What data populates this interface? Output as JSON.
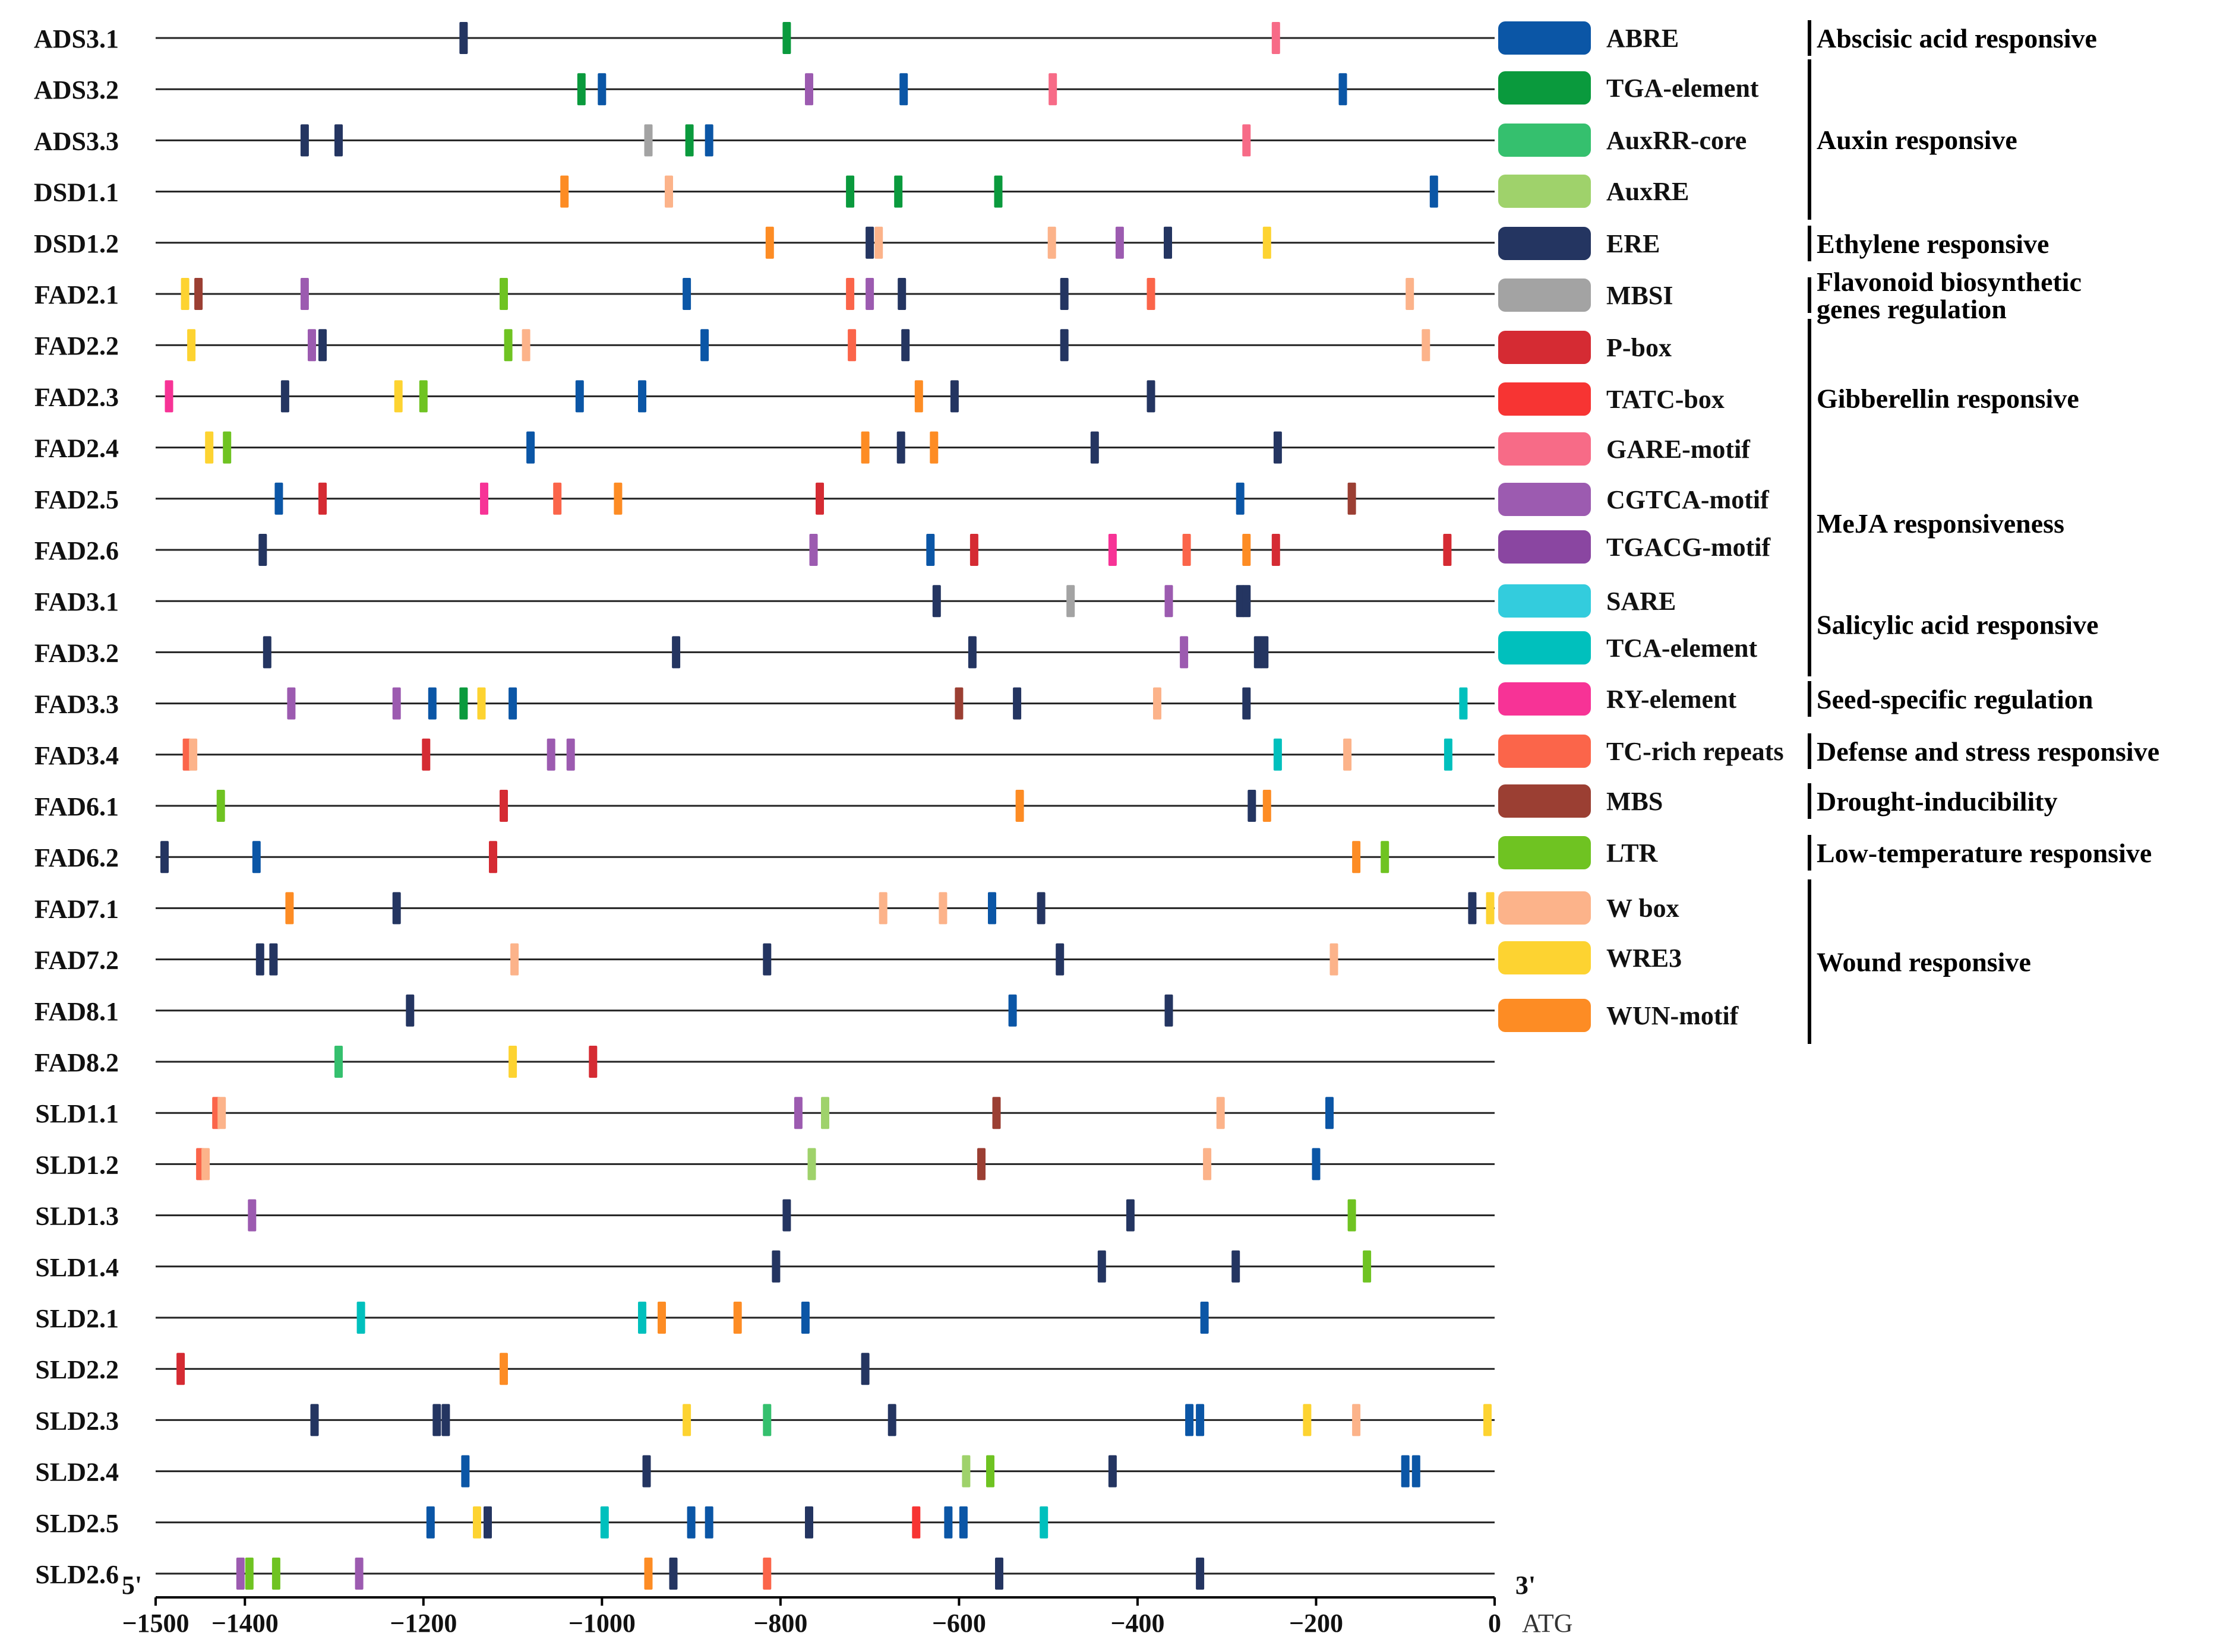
{
  "chart_data": {
    "type": "promoter-element-map",
    "x_axis": {
      "range": [
        -1500,
        0
      ],
      "ticks": [
        -1500,
        -1400,
        -1200,
        -1000,
        -800,
        -600,
        -400,
        -200,
        0
      ],
      "tick_labels": [
        "−1500",
        "−1400",
        "−1200",
        "−1000",
        "−800",
        "−600",
        "−400",
        "−200",
        "0"
      ],
      "left_end_label": "5'",
      "right_end_label": "3'",
      "atg_label": "ATG"
    },
    "elements": [
      {
        "key": "ABRE",
        "label": "ABRE",
        "color": "#0b56a6"
      },
      {
        "key": "TGA",
        "label": "TGA-element",
        "color": "#0a9a3d"
      },
      {
        "key": "AuxRR",
        "label": "AuxRR-core",
        "color": "#35c06e"
      },
      {
        "key": "AuxRE",
        "label": "AuxRE",
        "color": "#9fd26b"
      },
      {
        "key": "ERE",
        "label": "ERE",
        "color": "#243561"
      },
      {
        "key": "MBSI",
        "label": "MBSI",
        "color": "#a3a3a3"
      },
      {
        "key": "Pbox",
        "label": "P-box",
        "color": "#d52b33"
      },
      {
        "key": "TATC",
        "label": "TATC-box",
        "color": "#f73433"
      },
      {
        "key": "GARE",
        "label": "GARE-motif",
        "color": "#f76b87"
      },
      {
        "key": "CGTCA",
        "label": "CGTCA-motif",
        "color": "#9c5bb0"
      },
      {
        "key": "TGACG",
        "label": "TGACG-motif",
        "color": "#8a46a1"
      },
      {
        "key": "SARE",
        "label": "SARE",
        "color": "#33ccdd"
      },
      {
        "key": "TCA",
        "label": "TCA-element",
        "color": "#00c0bd"
      },
      {
        "key": "RY",
        "label": "RY-element",
        "color": "#f73396"
      },
      {
        "key": "TCrich",
        "label": "TC-rich repeats",
        "color": "#fb654a"
      },
      {
        "key": "MBS",
        "label": "MBS",
        "color": "#9b3f33"
      },
      {
        "key": "LTR",
        "label": "LTR",
        "color": "#6fc322"
      },
      {
        "key": "Wbox",
        "label": "W box",
        "color": "#fcb38a"
      },
      {
        "key": "WRE3",
        "label": "WRE3",
        "color": "#fdd331"
      },
      {
        "key": "WUN",
        "label": "WUN-motif",
        "color": "#fd8c24"
      }
    ],
    "groups": [
      {
        "lines": [
          "Abscisic acid responsive"
        ],
        "from": 0,
        "to": 0
      },
      {
        "lines": [
          "Auxin responsive"
        ],
        "from": 1,
        "to": 3
      },
      {
        "lines": [
          "Ethylene responsive"
        ],
        "from": 4,
        "to": 4
      },
      {
        "lines": [
          "Flavonoid biosynthetic",
          "genes regulation"
        ],
        "from": 5,
        "to": 5
      },
      {
        "lines": [
          "Gibberellin responsive"
        ],
        "from": 6,
        "to": 8
      },
      {
        "lines": [
          "MeJA responsiveness"
        ],
        "from": 9,
        "to": 10
      },
      {
        "lines": [
          "Salicylic acid responsive"
        ],
        "from": 11,
        "to": 12
      },
      {
        "lines": [
          "Seed-specific regulation"
        ],
        "from": 13,
        "to": 13
      },
      {
        "lines": [
          "Defense and stress responsive"
        ],
        "from": 14,
        "to": 14
      },
      {
        "lines": [
          "Drought-inducibility"
        ],
        "from": 15,
        "to": 15
      },
      {
        "lines": [
          "Low-temperature responsive"
        ],
        "from": 16,
        "to": 16
      },
      {
        "lines": [
          "Wound responsive"
        ],
        "from": 17,
        "to": 19
      }
    ],
    "genes": [
      {
        "name": "ADS3.1",
        "sites": [
          [
            -1155,
            "ERE"
          ],
          [
            -793,
            "TGA"
          ],
          [
            -245,
            "GARE"
          ]
        ]
      },
      {
        "name": "ADS3.2",
        "sites": [
          [
            -1023,
            "TGA"
          ],
          [
            -1000,
            "ABRE"
          ],
          [
            -768,
            "CGTCA"
          ],
          [
            -662,
            "ABRE"
          ],
          [
            -495,
            "GARE"
          ],
          [
            -170,
            "ABRE"
          ]
        ]
      },
      {
        "name": "ADS3.3",
        "sites": [
          [
            -1333,
            "ERE"
          ],
          [
            -1295,
            "ERE"
          ],
          [
            -948,
            "MBSI"
          ],
          [
            -902,
            "TGA"
          ],
          [
            -880,
            "ABRE"
          ],
          [
            -278,
            "GARE"
          ]
        ]
      },
      {
        "name": "DSD1.1",
        "sites": [
          [
            -1042,
            "WUN"
          ],
          [
            -925,
            "Wbox"
          ],
          [
            -722,
            "TGA"
          ],
          [
            -668,
            "TGA"
          ],
          [
            -556,
            "TGA"
          ],
          [
            -68,
            "ABRE"
          ]
        ]
      },
      {
        "name": "DSD1.2",
        "sites": [
          [
            -812,
            "WUN"
          ],
          [
            -700,
            "ERE"
          ],
          [
            -690,
            "Wbox"
          ],
          [
            -496,
            "Wbox"
          ],
          [
            -420,
            "CGTCA"
          ],
          [
            -366,
            "ERE"
          ],
          [
            -255,
            "WRE3"
          ]
        ]
      },
      {
        "name": "FAD2.1",
        "sites": [
          [
            -1467,
            "WRE3"
          ],
          [
            -1452,
            "MBS"
          ],
          [
            -1333,
            "CGTCA"
          ],
          [
            -1110,
            "LTR"
          ],
          [
            -905,
            "ABRE"
          ],
          [
            -722,
            "TCrich"
          ],
          [
            -700,
            "CGTCA"
          ],
          [
            -664,
            "ERE"
          ],
          [
            -482,
            "ERE"
          ],
          [
            -385,
            "TCrich"
          ],
          [
            -95,
            "Wbox"
          ]
        ]
      },
      {
        "name": "FAD2.2",
        "sites": [
          [
            -1460,
            "WRE3"
          ],
          [
            -1325,
            "CGTCA"
          ],
          [
            -1313,
            "ERE"
          ],
          [
            -1105,
            "LTR"
          ],
          [
            -1085,
            "Wbox"
          ],
          [
            -885,
            "ABRE"
          ],
          [
            -720,
            "TCrich"
          ],
          [
            -660,
            "ERE"
          ],
          [
            -482,
            "ERE"
          ],
          [
            -77,
            "Wbox"
          ]
        ]
      },
      {
        "name": "FAD2.3",
        "sites": [
          [
            -1485,
            "RY"
          ],
          [
            -1355,
            "ERE"
          ],
          [
            -1228,
            "WRE3"
          ],
          [
            -1200,
            "LTR"
          ],
          [
            -1025,
            "ABRE"
          ],
          [
            -955,
            "ABRE"
          ],
          [
            -645,
            "WUN"
          ],
          [
            -605,
            "ERE"
          ],
          [
            -385,
            "ERE"
          ]
        ]
      },
      {
        "name": "FAD2.4",
        "sites": [
          [
            -1440,
            "WRE3"
          ],
          [
            -1420,
            "LTR"
          ],
          [
            -1080,
            "ABRE"
          ],
          [
            -705,
            "WUN"
          ],
          [
            -665,
            "ERE"
          ],
          [
            -628,
            "WUN"
          ],
          [
            -448,
            "ERE"
          ],
          [
            -243,
            "ERE"
          ]
        ]
      },
      {
        "name": "FAD2.5",
        "sites": [
          [
            -1362,
            "ABRE"
          ],
          [
            -1313,
            "Pbox"
          ],
          [
            -1132,
            "RY"
          ],
          [
            -1050,
            "TCrich"
          ],
          [
            -982,
            "WUN"
          ],
          [
            -756,
            "Pbox"
          ],
          [
            -285,
            "ABRE"
          ],
          [
            -160,
            "MBS"
          ]
        ]
      },
      {
        "name": "FAD2.6",
        "sites": [
          [
            -1380,
            "ERE"
          ],
          [
            -763,
            "CGTCA"
          ],
          [
            -632,
            "ABRE"
          ],
          [
            -583,
            "Pbox"
          ],
          [
            -428,
            "RY"
          ],
          [
            -345,
            "TCrich"
          ],
          [
            -278,
            "WUN"
          ],
          [
            -245,
            "Pbox"
          ],
          [
            -53,
            "Pbox"
          ]
        ]
      },
      {
        "name": "FAD3.1",
        "sites": [
          [
            -625,
            "ERE"
          ],
          [
            -475,
            "MBSI"
          ],
          [
            -365,
            "CGTCA"
          ],
          [
            -285,
            "ERE"
          ],
          [
            -278,
            "ERE"
          ]
        ]
      },
      {
        "name": "FAD3.2",
        "sites": [
          [
            -1375,
            "ERE"
          ],
          [
            -917,
            "ERE"
          ],
          [
            -585,
            "ERE"
          ],
          [
            -348,
            "CGTCA"
          ],
          [
            -265,
            "ERE"
          ],
          [
            -258,
            "ERE"
          ]
        ]
      },
      {
        "name": "FAD3.3",
        "sites": [
          [
            -1348,
            "CGTCA"
          ],
          [
            -1230,
            "CGTCA"
          ],
          [
            -1190,
            "ABRE"
          ],
          [
            -1155,
            "TGA"
          ],
          [
            -1135,
            "WRE3"
          ],
          [
            -1100,
            "ABRE"
          ],
          [
            -600,
            "MBS"
          ],
          [
            -535,
            "ERE"
          ],
          [
            -378,
            "Wbox"
          ],
          [
            -278,
            "ERE"
          ],
          [
            -35,
            "TCA"
          ]
        ]
      },
      {
        "name": "FAD3.4",
        "sites": [
          [
            -1465,
            "TCrich"
          ],
          [
            -1458,
            "Wbox"
          ],
          [
            -1197,
            "Pbox"
          ],
          [
            -1057,
            "CGTCA"
          ],
          [
            -1035,
            "CGTCA"
          ],
          [
            -243,
            "TCA"
          ],
          [
            -165,
            "Wbox"
          ],
          [
            -52,
            "TCA"
          ]
        ]
      },
      {
        "name": "FAD6.1",
        "sites": [
          [
            -1427,
            "LTR"
          ],
          [
            -1110,
            "Pbox"
          ],
          [
            -532,
            "WUN"
          ],
          [
            -272,
            "ERE"
          ],
          [
            -255,
            "WUN"
          ]
        ]
      },
      {
        "name": "FAD6.2",
        "sites": [
          [
            -1490,
            "ERE"
          ],
          [
            -1387,
            "ABRE"
          ],
          [
            -1122,
            "Pbox"
          ],
          [
            -155,
            "WUN"
          ],
          [
            -123,
            "LTR"
          ]
        ]
      },
      {
        "name": "FAD7.1",
        "sites": [
          [
            -1350,
            "WUN"
          ],
          [
            -1230,
            "ERE"
          ],
          [
            -685,
            "Wbox"
          ],
          [
            -618,
            "Wbox"
          ],
          [
            -563,
            "ABRE"
          ],
          [
            -508,
            "ERE"
          ],
          [
            -25,
            "ERE"
          ],
          [
            -5,
            "WRE3"
          ]
        ]
      },
      {
        "name": "FAD7.2",
        "sites": [
          [
            -1383,
            "ERE"
          ],
          [
            -1368,
            "ERE"
          ],
          [
            -1098,
            "Wbox"
          ],
          [
            -815,
            "ERE"
          ],
          [
            -487,
            "ERE"
          ],
          [
            -180,
            "Wbox"
          ]
        ]
      },
      {
        "name": "FAD8.1",
        "sites": [
          [
            -1215,
            "ERE"
          ],
          [
            -540,
            "ABRE"
          ],
          [
            -365,
            "ERE"
          ]
        ]
      },
      {
        "name": "FAD8.2",
        "sites": [
          [
            -1295,
            "AuxRR"
          ],
          [
            -1100,
            "WRE3"
          ],
          [
            -1010,
            "Pbox"
          ]
        ]
      },
      {
        "name": "SLD1.1",
        "sites": [
          [
            -1432,
            "TCrich"
          ],
          [
            -1426,
            "Wbox"
          ],
          [
            -780,
            "CGTCA"
          ],
          [
            -750,
            "AuxRE"
          ],
          [
            -558,
            "MBS"
          ],
          [
            -307,
            "Wbox"
          ],
          [
            -185,
            "ABRE"
          ]
        ]
      },
      {
        "name": "SLD1.2",
        "sites": [
          [
            -1450,
            "TCrich"
          ],
          [
            -1444,
            "Wbox"
          ],
          [
            -765,
            "AuxRE"
          ],
          [
            -575,
            "MBS"
          ],
          [
            -322,
            "Wbox"
          ],
          [
            -200,
            "ABRE"
          ]
        ]
      },
      {
        "name": "SLD1.3",
        "sites": [
          [
            -1392,
            "CGTCA"
          ],
          [
            -793,
            "ERE"
          ],
          [
            -408,
            "ERE"
          ],
          [
            -160,
            "LTR"
          ]
        ]
      },
      {
        "name": "SLD1.4",
        "sites": [
          [
            -805,
            "ERE"
          ],
          [
            -440,
            "ERE"
          ],
          [
            -290,
            "ERE"
          ],
          [
            -143,
            "LTR"
          ]
        ]
      },
      {
        "name": "SLD2.1",
        "sites": [
          [
            -1270,
            "TCA"
          ],
          [
            -955,
            "TCA"
          ],
          [
            -933,
            "WUN"
          ],
          [
            -848,
            "WUN"
          ],
          [
            -772,
            "ABRE"
          ],
          [
            -325,
            "ABRE"
          ]
        ]
      },
      {
        "name": "SLD2.2",
        "sites": [
          [
            -1472,
            "Pbox"
          ],
          [
            -1110,
            "WUN"
          ],
          [
            -705,
            "ERE"
          ]
        ]
      },
      {
        "name": "SLD2.3",
        "sites": [
          [
            -1322,
            "ERE"
          ],
          [
            -1185,
            "ERE"
          ],
          [
            -1175,
            "ERE"
          ],
          [
            -905,
            "WRE3"
          ],
          [
            -815,
            "AuxRR"
          ],
          [
            -675,
            "ERE"
          ],
          [
            -342,
            "ABRE"
          ],
          [
            -330,
            "ABRE"
          ],
          [
            -210,
            "WRE3"
          ],
          [
            -155,
            "Wbox"
          ],
          [
            -8,
            "WRE3"
          ]
        ]
      },
      {
        "name": "SLD2.4",
        "sites": [
          [
            -1153,
            "ABRE"
          ],
          [
            -950,
            "ERE"
          ],
          [
            -592,
            "AuxRE"
          ],
          [
            -565,
            "LTR"
          ],
          [
            -428,
            "ERE"
          ],
          [
            -100,
            "ABRE"
          ],
          [
            -88,
            "ABRE"
          ]
        ]
      },
      {
        "name": "SLD2.5",
        "sites": [
          [
            -1192,
            "ABRE"
          ],
          [
            -1140,
            "WRE3"
          ],
          [
            -1128,
            "ERE"
          ],
          [
            -997,
            "TCA"
          ],
          [
            -900,
            "ABRE"
          ],
          [
            -880,
            "ABRE"
          ],
          [
            -768,
            "ERE"
          ],
          [
            -648,
            "TATC"
          ],
          [
            -612,
            "ABRE"
          ],
          [
            -595,
            "ABRE"
          ],
          [
            -505,
            "TCA"
          ]
        ]
      },
      {
        "name": "SLD2.6",
        "sites": [
          [
            -1405,
            "CGTCA"
          ],
          [
            -1395,
            "LTR"
          ],
          [
            -1365,
            "LTR"
          ],
          [
            -1272,
            "CGTCA"
          ],
          [
            -948,
            "WUN"
          ],
          [
            -920,
            "ERE"
          ],
          [
            -815,
            "TCrich"
          ],
          [
            -555,
            "ERE"
          ],
          [
            -330,
            "ERE"
          ]
        ]
      }
    ]
  }
}
